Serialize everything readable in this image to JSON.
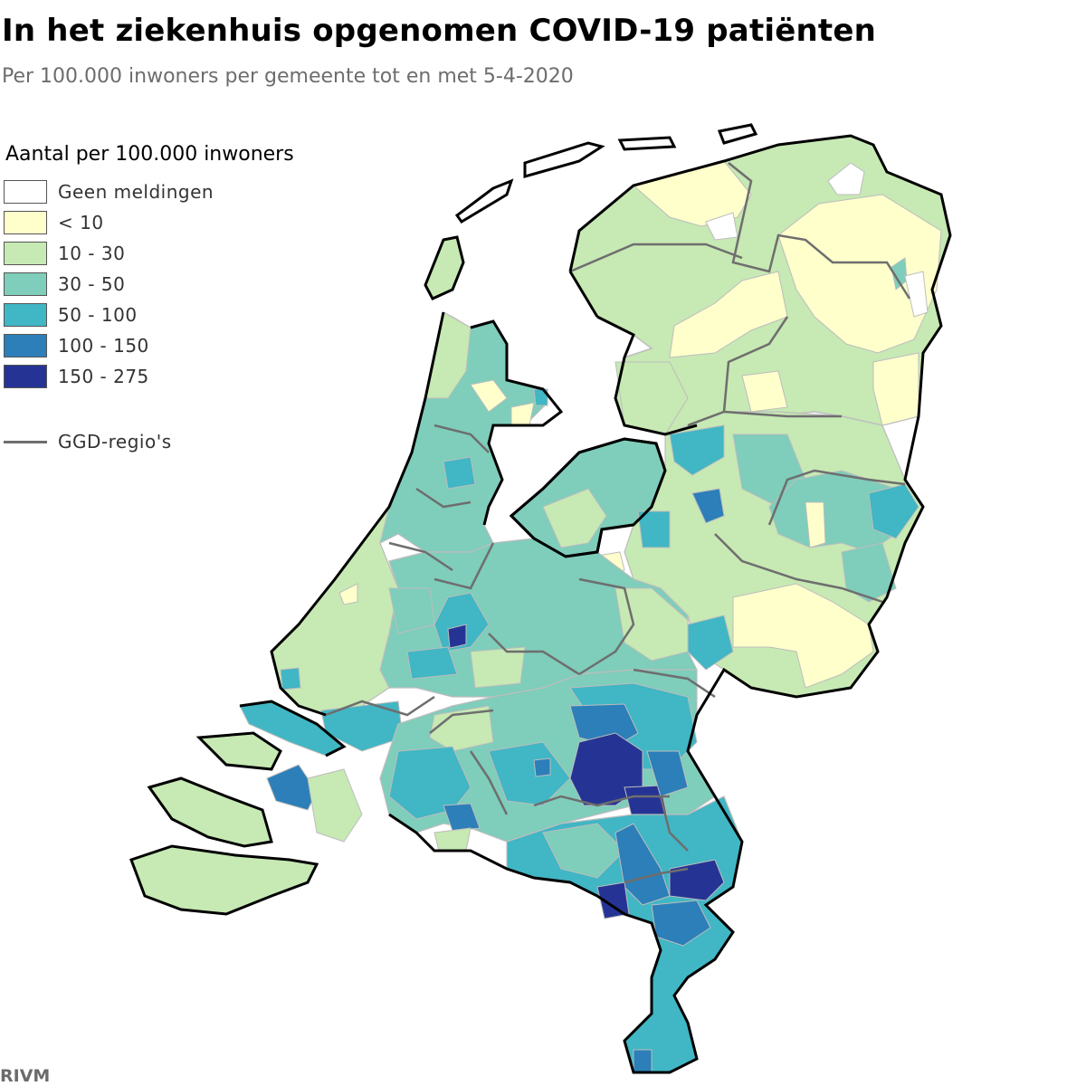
{
  "title": "In het ziekenhuis opgenomen COVID-19 patiënten",
  "subtitle": "Per 100.000 inwoners per gemeente tot en met 5-4-2020",
  "legend": {
    "title": "Aantal per 100.000 inwoners",
    "items": [
      {
        "label": "Geen meldingen",
        "color": "#ffffff"
      },
      {
        "label": "< 10",
        "color": "#ffffcc"
      },
      {
        "label": "10 - 30",
        "color": "#c7e9b4"
      },
      {
        "label": "30 - 50",
        "color": "#7fcdbb"
      },
      {
        "label": "50 - 100",
        "color": "#41b6c4"
      },
      {
        "label": "100 - 150",
        "color": "#2c7fb8"
      },
      {
        "label": "150 - 275",
        "color": "#253494"
      }
    ],
    "ggd_label": "GGD-regio's"
  },
  "source": "RIVM"
}
